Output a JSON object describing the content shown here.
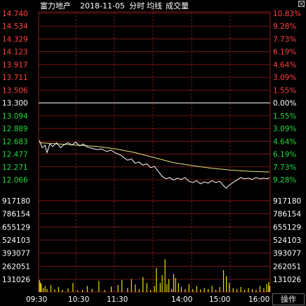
{
  "header": {
    "stock_name": "富力地产",
    "date": "2018-11-05",
    "chart_mode": "分时",
    "avg_line_label": "均线",
    "volume_label": "成交量"
  },
  "operate_button": "操作",
  "close_icon": "close-icon",
  "colors": {
    "background": "#000000",
    "grid_red": "#8b1a1a",
    "price_line": "#ffffff",
    "avg_line": "#e8e27a",
    "up_text": "#ff4040",
    "down_text": "#22d83a",
    "neutral_text": "#ffffff",
    "volume_bar": "#e8e000"
  },
  "chart_data": {
    "type": "line",
    "title": "富力地产 2018-11-05 分时",
    "prev_close": 13.3,
    "price_axis": {
      "ticks": [
        "14.740",
        "14.534",
        "14.329",
        "14.123",
        "13.917",
        "13.711",
        "13.506",
        "13.300",
        "13.094",
        "12.889",
        "12.683",
        "12.477",
        "12.271",
        "12.066"
      ],
      "pct_ticks": [
        "10.83%",
        "9.28%",
        "7.73%",
        "6.19%",
        "4.64%",
        "3.09%",
        "1.55%",
        "0.00%",
        "1.55%",
        "3.09%",
        "4.64%",
        "6.19%",
        "7.73%",
        "9.28%"
      ],
      "ylim": [
        12.066,
        14.74
      ]
    },
    "volume_axis": {
      "ticks": [
        "917180",
        "786154",
        "655129",
        "524103",
        "393077",
        "262051",
        "131026"
      ],
      "right_ticks": [
        "917180",
        "786154",
        "655129",
        "524103",
        "393077",
        "262051",
        "131026"
      ],
      "ylim": [
        0,
        917180
      ]
    },
    "time_ticks": [
      "09:30",
      "10:30",
      "11:30",
      "14:00",
      "15:00",
      "16:00"
    ],
    "price_series": [
      {
        "t": 0,
        "v": 12.7
      },
      {
        "t": 3,
        "v": 12.58
      },
      {
        "t": 6,
        "v": 12.62
      },
      {
        "t": 8,
        "v": 12.5
      },
      {
        "t": 11,
        "v": 12.64
      },
      {
        "t": 14,
        "v": 12.6
      },
      {
        "t": 18,
        "v": 12.66
      },
      {
        "t": 22,
        "v": 12.58
      },
      {
        "t": 26,
        "v": 12.63
      },
      {
        "t": 30,
        "v": 12.66
      },
      {
        "t": 34,
        "v": 12.62
      },
      {
        "t": 38,
        "v": 12.67
      },
      {
        "t": 42,
        "v": 12.61
      },
      {
        "t": 46,
        "v": 12.64
      },
      {
        "t": 50,
        "v": 12.59
      },
      {
        "t": 55,
        "v": 12.57
      },
      {
        "t": 60,
        "v": 12.55
      },
      {
        "t": 65,
        "v": 12.56
      },
      {
        "t": 70,
        "v": 12.52
      },
      {
        "t": 75,
        "v": 12.54
      },
      {
        "t": 80,
        "v": 12.49
      },
      {
        "t": 85,
        "v": 12.46
      },
      {
        "t": 88,
        "v": 12.42
      },
      {
        "t": 92,
        "v": 12.38
      },
      {
        "t": 96,
        "v": 12.4
      },
      {
        "t": 100,
        "v": 12.33
      },
      {
        "t": 104,
        "v": 12.35
      },
      {
        "t": 108,
        "v": 12.3
      },
      {
        "t": 112,
        "v": 12.32
      },
      {
        "t": 116,
        "v": 12.26
      },
      {
        "t": 120,
        "v": 12.28
      },
      {
        "t": 124,
        "v": 12.2
      },
      {
        "t": 128,
        "v": 12.12
      },
      {
        "t": 132,
        "v": 12.08
      },
      {
        "t": 136,
        "v": 12.1
      },
      {
        "t": 140,
        "v": 12.06
      },
      {
        "t": 144,
        "v": 12.09
      },
      {
        "t": 148,
        "v": 12.07
      },
      {
        "t": 152,
        "v": 12.1
      },
      {
        "t": 156,
        "v": 12.04
      },
      {
        "t": 160,
        "v": 12.02
      },
      {
        "t": 164,
        "v": 12.05
      },
      {
        "t": 168,
        "v": 12.0
      },
      {
        "t": 172,
        "v": 12.03
      },
      {
        "t": 176,
        "v": 12.01
      },
      {
        "t": 180,
        "v": 12.05
      },
      {
        "t": 184,
        "v": 12.02
      },
      {
        "t": 188,
        "v": 12.04
      },
      {
        "t": 192,
        "v": 11.97
      },
      {
        "t": 195,
        "v": 11.93
      },
      {
        "t": 198,
        "v": 11.98
      },
      {
        "t": 202,
        "v": 12.02
      },
      {
        "t": 206,
        "v": 12.06
      },
      {
        "t": 210,
        "v": 12.1
      },
      {
        "t": 214,
        "v": 12.08
      },
      {
        "t": 218,
        "v": 12.09
      },
      {
        "t": 222,
        "v": 12.07
      },
      {
        "t": 226,
        "v": 12.1
      },
      {
        "t": 230,
        "v": 12.08
      },
      {
        "t": 234,
        "v": 12.09
      },
      {
        "t": 238,
        "v": 12.08
      },
      {
        "t": 240,
        "v": 12.1
      }
    ],
    "avg_series": [
      {
        "t": 0,
        "v": 12.66
      },
      {
        "t": 20,
        "v": 12.64
      },
      {
        "t": 40,
        "v": 12.62
      },
      {
        "t": 60,
        "v": 12.6
      },
      {
        "t": 80,
        "v": 12.56
      },
      {
        "t": 100,
        "v": 12.5
      },
      {
        "t": 120,
        "v": 12.42
      },
      {
        "t": 140,
        "v": 12.34
      },
      {
        "t": 160,
        "v": 12.29
      },
      {
        "t": 180,
        "v": 12.25
      },
      {
        "t": 200,
        "v": 12.22
      },
      {
        "t": 220,
        "v": 12.2
      },
      {
        "t": 240,
        "v": 12.19
      }
    ],
    "volume_series": [
      {
        "t": 0,
        "v": 120000
      },
      {
        "t": 1,
        "v": 95000
      },
      {
        "t": 2,
        "v": 80000
      },
      {
        "t": 4,
        "v": 40000
      },
      {
        "t": 6,
        "v": 60000
      },
      {
        "t": 8,
        "v": 30000
      },
      {
        "t": 12,
        "v": 70000
      },
      {
        "t": 16,
        "v": 25000
      },
      {
        "t": 20,
        "v": 50000
      },
      {
        "t": 24,
        "v": 20000
      },
      {
        "t": 30,
        "v": 35000
      },
      {
        "t": 35,
        "v": 90000
      },
      {
        "t": 40,
        "v": 15000
      },
      {
        "t": 45,
        "v": 20000
      },
      {
        "t": 50,
        "v": 60000
      },
      {
        "t": 55,
        "v": 30000
      },
      {
        "t": 62,
        "v": 110000
      },
      {
        "t": 68,
        "v": 20000
      },
      {
        "t": 75,
        "v": 55000
      },
      {
        "t": 82,
        "v": 70000
      },
      {
        "t": 86,
        "v": 120000
      },
      {
        "t": 92,
        "v": 40000
      },
      {
        "t": 96,
        "v": 130000
      },
      {
        "t": 100,
        "v": 75000
      },
      {
        "t": 104,
        "v": 30000
      },
      {
        "t": 108,
        "v": 150000
      },
      {
        "t": 112,
        "v": 90000
      },
      {
        "t": 116,
        "v": 20000
      },
      {
        "t": 120,
        "v": 60000
      },
      {
        "t": 122,
        "v": 240000
      },
      {
        "t": 126,
        "v": 90000
      },
      {
        "t": 128,
        "v": 170000
      },
      {
        "t": 131,
        "v": 330000
      },
      {
        "t": 133,
        "v": 80000
      },
      {
        "t": 135,
        "v": 130000
      },
      {
        "t": 138,
        "v": 30000
      },
      {
        "t": 140,
        "v": 180000
      },
      {
        "t": 142,
        "v": 140000
      },
      {
        "t": 145,
        "v": 90000
      },
      {
        "t": 148,
        "v": 50000
      },
      {
        "t": 152,
        "v": 30000
      },
      {
        "t": 156,
        "v": 80000
      },
      {
        "t": 160,
        "v": 30000
      },
      {
        "t": 164,
        "v": 60000
      },
      {
        "t": 168,
        "v": 25000
      },
      {
        "t": 172,
        "v": 40000
      },
      {
        "t": 176,
        "v": 30000
      },
      {
        "t": 180,
        "v": 60000
      },
      {
        "t": 184,
        "v": 20000
      },
      {
        "t": 188,
        "v": 50000
      },
      {
        "t": 192,
        "v": 220000
      },
      {
        "t": 195,
        "v": 160000
      },
      {
        "t": 198,
        "v": 90000
      },
      {
        "t": 202,
        "v": 40000
      },
      {
        "t": 206,
        "v": 30000
      },
      {
        "t": 210,
        "v": 50000
      },
      {
        "t": 214,
        "v": 20000
      },
      {
        "t": 218,
        "v": 40000
      },
      {
        "t": 222,
        "v": 30000
      },
      {
        "t": 226,
        "v": 20000
      },
      {
        "t": 230,
        "v": 60000
      },
      {
        "t": 234,
        "v": 40000
      },
      {
        "t": 237,
        "v": 80000
      },
      {
        "t": 239,
        "v": 100000
      },
      {
        "t": 240,
        "v": 60000
      }
    ]
  }
}
